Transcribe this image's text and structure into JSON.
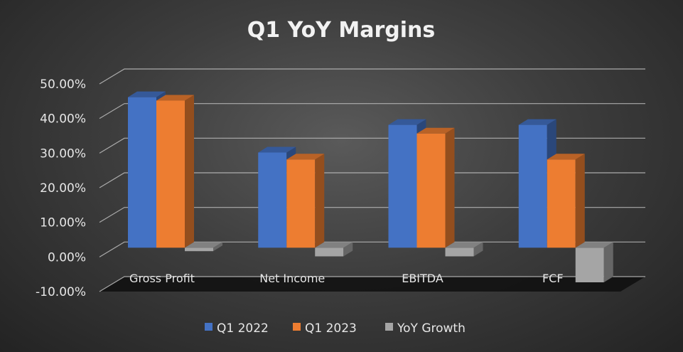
{
  "chart_data": {
    "type": "bar",
    "title": "Q1 YoY Margins",
    "categories": [
      "Gross Profit",
      "Net Income",
      "EBITDA",
      "FCF"
    ],
    "series": [
      {
        "name": "Q1 2022",
        "values": [
          0.435,
          0.275,
          0.355,
          0.355
        ],
        "color": "#4472c4"
      },
      {
        "name": "Q1 2023",
        "values": [
          0.425,
          0.255,
          0.33,
          0.255
        ],
        "color": "#ed7d31"
      },
      {
        "name": "YoY Growth",
        "values": [
          -0.01,
          -0.025,
          -0.025,
          -0.1
        ],
        "color": "#a5a5a5"
      }
    ],
    "y_ticks": [
      "50.00%",
      "40.00%",
      "30.00%",
      "20.00%",
      "10.00%",
      "0.00%",
      "-10.00%"
    ],
    "ylim": [
      -0.1,
      0.5
    ],
    "grid": true,
    "legend_position": "bottom"
  }
}
